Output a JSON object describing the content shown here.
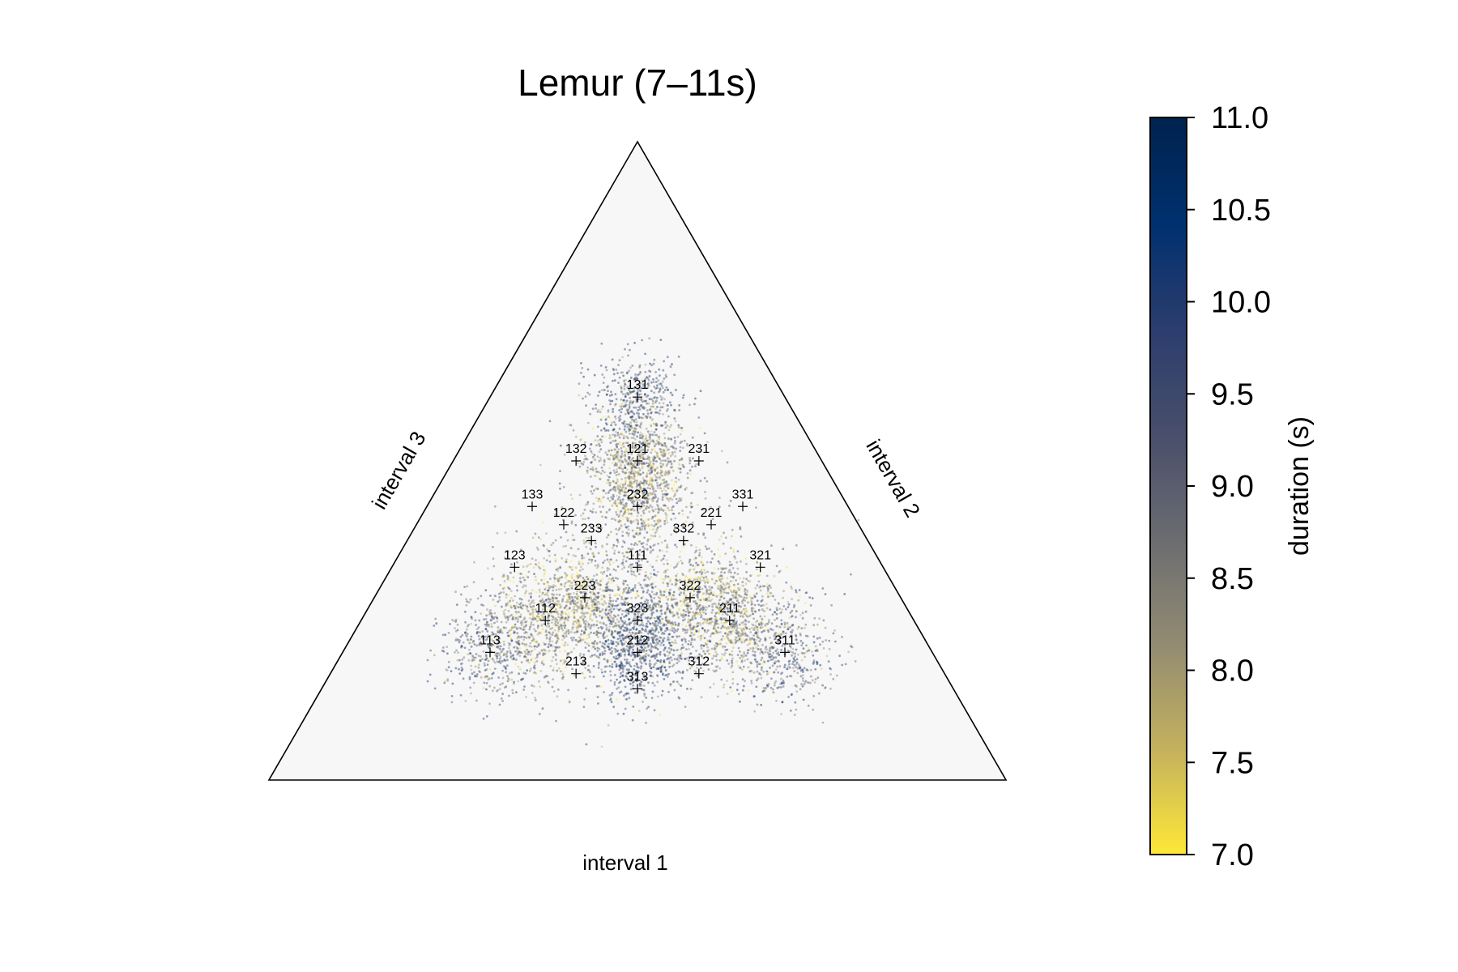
{
  "chart_data": {
    "type": "scatter",
    "subtype": "ternary",
    "title": "Lemur (7–11s)",
    "axes": {
      "bottom": "interval 1",
      "right": "interval 2",
      "left": "interval 3"
    },
    "background_color": "#f7f7f7",
    "edge_color": "#000000",
    "marker_points": [
      {
        "label": "131",
        "ratio": [
          1,
          3,
          1
        ]
      },
      {
        "label": "132",
        "ratio": [
          1,
          3,
          2
        ]
      },
      {
        "label": "121",
        "ratio": [
          1,
          2,
          1
        ]
      },
      {
        "label": "231",
        "ratio": [
          2,
          3,
          1
        ]
      },
      {
        "label": "133",
        "ratio": [
          1,
          3,
          3
        ]
      },
      {
        "label": "232",
        "ratio": [
          2,
          3,
          2
        ]
      },
      {
        "label": "331",
        "ratio": [
          3,
          3,
          1
        ]
      },
      {
        "label": "122",
        "ratio": [
          1,
          2,
          2
        ]
      },
      {
        "label": "221",
        "ratio": [
          2,
          2,
          1
        ]
      },
      {
        "label": "233",
        "ratio": [
          2,
          3,
          3
        ]
      },
      {
        "label": "332",
        "ratio": [
          3,
          3,
          2
        ]
      },
      {
        "label": "123",
        "ratio": [
          1,
          2,
          3
        ]
      },
      {
        "label": "111",
        "ratio": [
          1,
          1,
          1
        ]
      },
      {
        "label": "321",
        "ratio": [
          3,
          2,
          1
        ]
      },
      {
        "label": "223",
        "ratio": [
          2,
          2,
          3
        ]
      },
      {
        "label": "322",
        "ratio": [
          3,
          2,
          2
        ]
      },
      {
        "label": "112",
        "ratio": [
          1,
          1,
          2
        ]
      },
      {
        "label": "323",
        "ratio": [
          3,
          2,
          3
        ]
      },
      {
        "label": "211",
        "ratio": [
          2,
          1,
          1
        ]
      },
      {
        "label": "113",
        "ratio": [
          1,
          1,
          3
        ]
      },
      {
        "label": "212",
        "ratio": [
          2,
          1,
          2
        ]
      },
      {
        "label": "311",
        "ratio": [
          3,
          1,
          1
        ]
      },
      {
        "label": "213",
        "ratio": [
          2,
          1,
          3
        ]
      },
      {
        "label": "312",
        "ratio": [
          3,
          1,
          2
        ]
      },
      {
        "label": "313",
        "ratio": [
          3,
          1,
          3
        ]
      }
    ],
    "clusters": [
      {
        "ratio": [
          1,
          2,
          1
        ],
        "spread": 0.035,
        "weight": 3.2,
        "color_value": 8.4
      },
      {
        "ratio": [
          1,
          3,
          1
        ],
        "spread": 0.03,
        "weight": 1.4,
        "color_value": 9.6
      },
      {
        "ratio": [
          2,
          3,
          2
        ],
        "spread": 0.03,
        "weight": 1.4,
        "color_value": 8.3
      },
      {
        "ratio": [
          1,
          1,
          2
        ],
        "spread": 0.04,
        "weight": 3.0,
        "color_value": 8.3
      },
      {
        "ratio": [
          1,
          1,
          3
        ],
        "spread": 0.035,
        "weight": 1.5,
        "color_value": 9.2
      },
      {
        "ratio": [
          2,
          2,
          3
        ],
        "spread": 0.03,
        "weight": 1.3,
        "color_value": 8.1
      },
      {
        "ratio": [
          2,
          1,
          1
        ],
        "spread": 0.04,
        "weight": 3.0,
        "color_value": 8.4
      },
      {
        "ratio": [
          3,
          1,
          1
        ],
        "spread": 0.035,
        "weight": 1.5,
        "color_value": 9.3
      },
      {
        "ratio": [
          3,
          2,
          2
        ],
        "spread": 0.03,
        "weight": 1.3,
        "color_value": 8.1
      },
      {
        "ratio": [
          2,
          1,
          2
        ],
        "spread": 0.035,
        "weight": 2.4,
        "color_value": 9.9
      },
      {
        "ratio": [
          3,
          2,
          3
        ],
        "spread": 0.03,
        "weight": 1.0,
        "color_value": 9.6
      },
      {
        "ratio": [
          1,
          1,
          1
        ],
        "spread": 0.07,
        "weight": 2.2,
        "color_value": 8.8
      }
    ],
    "colorbar": {
      "label": "duration (s)",
      "min": 7.0,
      "max": 11.0,
      "ticks": [
        "7.0",
        "7.5",
        "8.0",
        "8.5",
        "9.0",
        "9.5",
        "10.0",
        "10.5",
        "11.0"
      ],
      "colormap": "cividis_r",
      "stops": [
        "#fee838",
        "#c4b15d",
        "#928b72",
        "#6b6c70",
        "#484e6b",
        "#2b3d6e",
        "#00306f",
        "#00224e"
      ]
    }
  }
}
